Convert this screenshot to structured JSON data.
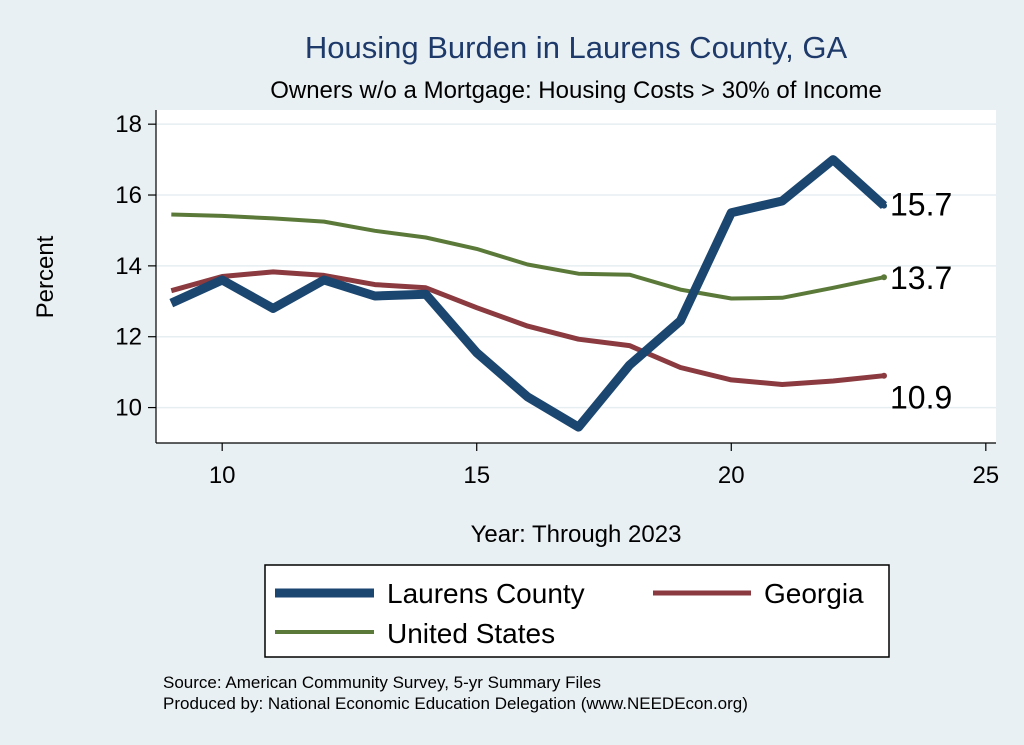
{
  "chart_data": {
    "type": "line",
    "title": "Housing Burden in Laurens County, GA",
    "subtitle": "Owners w/o a Mortgage: Housing Costs > 30% of Income",
    "xlabel": "Year: Through 2023",
    "ylabel": "Percent",
    "xlim": [
      8.7,
      25.2
    ],
    "ylim": [
      9.0,
      18.4
    ],
    "xticks": [
      10,
      15,
      20,
      25
    ],
    "yticks": [
      10,
      12,
      14,
      16,
      18
    ],
    "grid": true,
    "legend_position": "bottom",
    "x": [
      9,
      10,
      11,
      12,
      13,
      14,
      15,
      16,
      17,
      18,
      19,
      20,
      21,
      22,
      23
    ],
    "series": [
      {
        "name": "Laurens County",
        "color": "#1b4670",
        "values": [
          12.95,
          13.6,
          12.8,
          13.6,
          13.15,
          13.2,
          11.55,
          10.3,
          9.45,
          11.2,
          12.45,
          15.5,
          15.83,
          17.0,
          15.7
        ],
        "end_label": "15.7"
      },
      {
        "name": "Georgia",
        "color": "#8b3a3f",
        "values": [
          13.3,
          13.7,
          13.83,
          13.73,
          13.47,
          13.38,
          12.82,
          12.3,
          11.93,
          11.75,
          11.13,
          10.78,
          10.65,
          10.75,
          10.9
        ],
        "end_label": "10.9"
      },
      {
        "name": "United States",
        "color": "#5b7a3a",
        "values": [
          15.45,
          15.41,
          15.34,
          15.25,
          14.99,
          14.8,
          14.48,
          14.04,
          13.78,
          13.75,
          13.33,
          13.08,
          13.1,
          13.38,
          13.68
        ],
        "end_label": "13.7"
      }
    ],
    "source_notes": [
      "Source: American Community Survey, 5-yr Summary Files",
      "Produced by: National Economic Education Delegation (www.NEEDEcon.org)"
    ]
  }
}
